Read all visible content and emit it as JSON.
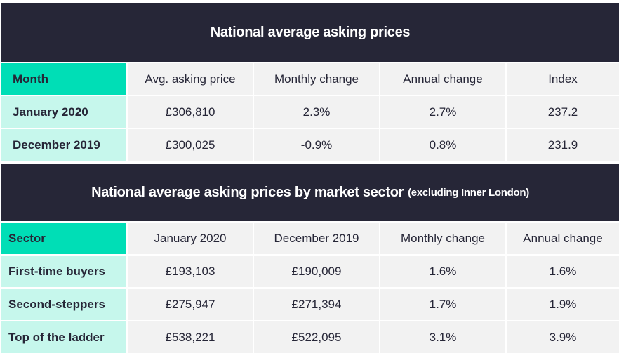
{
  "table1": {
    "title": "National average asking prices",
    "headers": [
      "Month",
      "Avg. asking price",
      "Monthly change",
      "Annual change",
      "Index"
    ],
    "rows": [
      [
        "January 2020",
        "£306,810",
        "2.3%",
        "2.7%",
        "237.2"
      ],
      [
        "December 2019",
        "£300,025",
        "-0.9%",
        "0.8%",
        "231.9"
      ]
    ]
  },
  "table2": {
    "title": "National average asking prices by market sector",
    "subtitle": "(excluding Inner London)",
    "headers": [
      "Sector",
      "January 2020",
      "December 2019",
      "Monthly change",
      "Annual change"
    ],
    "rows": [
      [
        "First-time buyers",
        "£193,103",
        "£190,009",
        "1.6%",
        "1.6%"
      ],
      [
        "Second-steppers",
        "£275,947",
        "£271,394",
        "1.7%",
        "1.9%"
      ],
      [
        "Top of the ladder",
        "£538,221",
        "£522,095",
        "3.1%",
        "3.9%"
      ]
    ]
  },
  "colors": {
    "banner": "#262637",
    "header_accent": "#00deb6",
    "row_label": "#c6f7ec",
    "cell": "#f2f2f2"
  }
}
